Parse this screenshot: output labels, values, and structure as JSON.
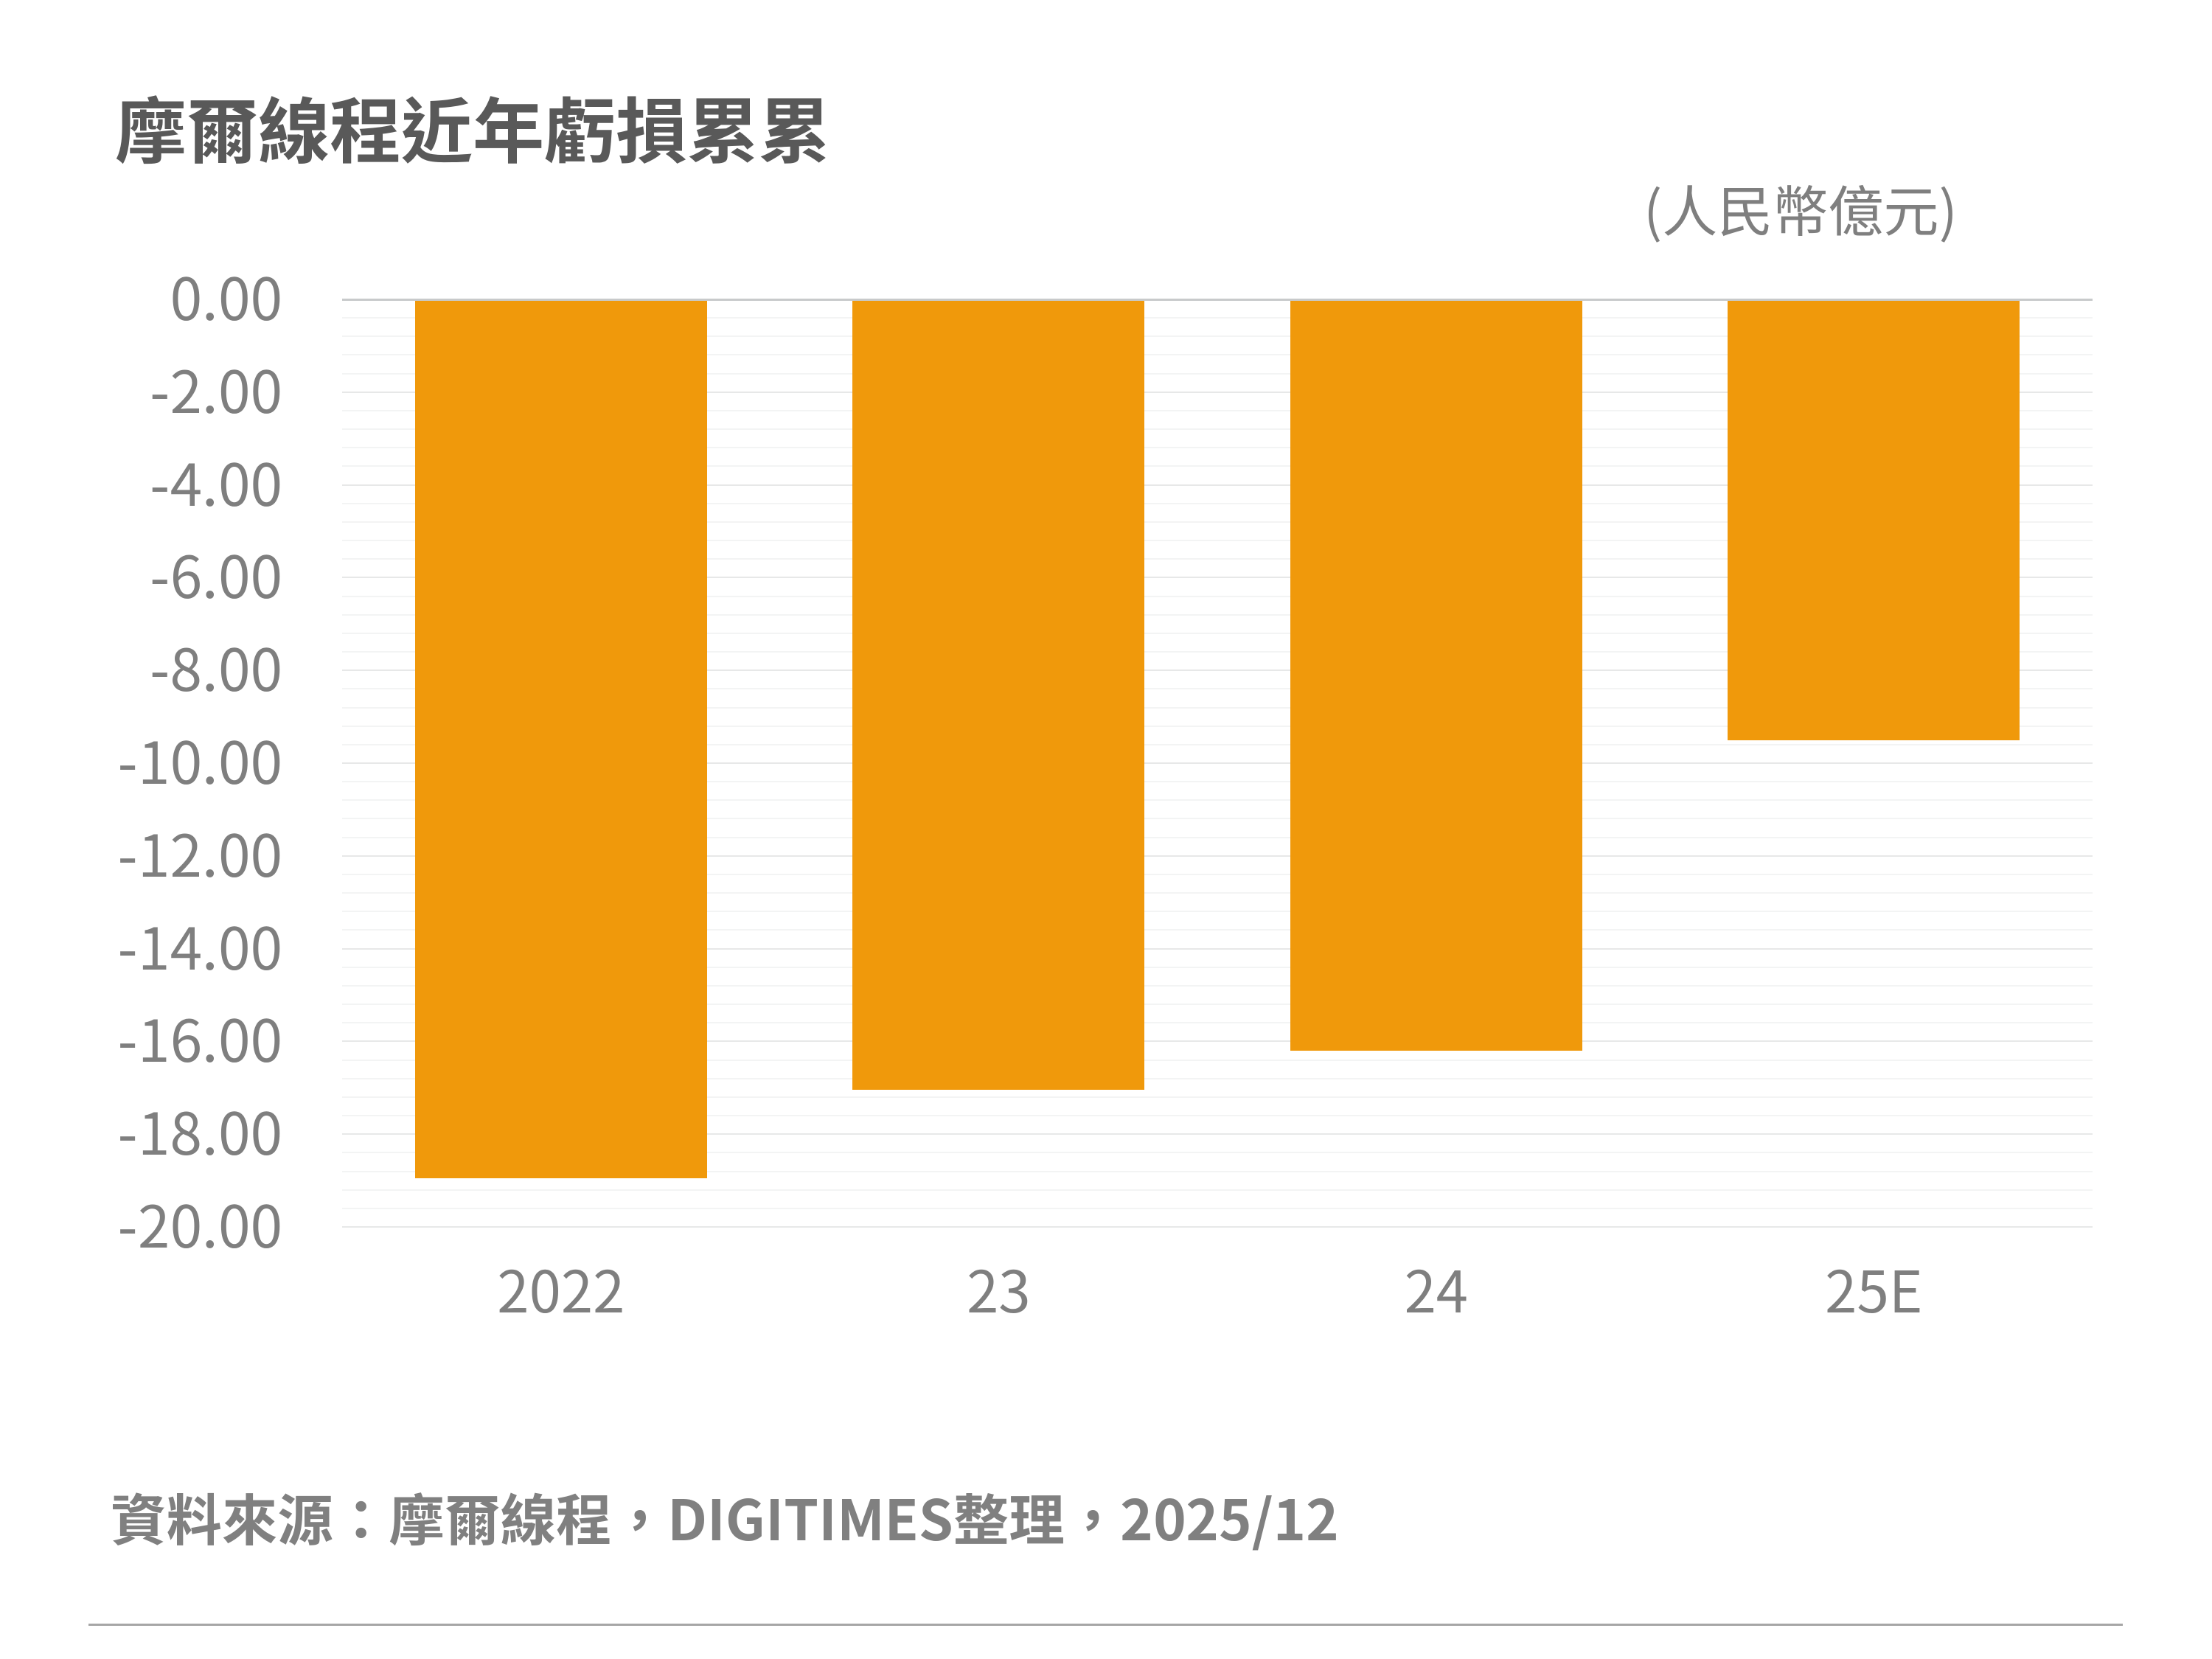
{
  "chart": {
    "title": "摩爾線程近年虧損累累",
    "unit_label": "(人民幣億元)",
    "source_note": "資料來源：摩爾線程，DIGITIMES整理，2025/12"
  },
  "chart_data": {
    "type": "bar",
    "title": "摩爾線程近年虧損累累",
    "unit": "人民幣億元",
    "categories": [
      "2022",
      "23",
      "24",
      "25E"
    ],
    "values": [
      -18.95,
      -17.05,
      -16.2,
      -9.5
    ],
    "xlabel": "",
    "ylabel": "",
    "ylim": [
      -20,
      0
    ],
    "y_major_step": 2,
    "y_minor_step": 0.4,
    "y_tick_labels": [
      "0.00",
      "-2.00",
      "-4.00",
      "-6.00",
      "-8.00",
      "-10.00",
      "-12.00",
      "-14.00",
      "-16.00",
      "-18.00",
      "-20.00"
    ],
    "grid": "major-and-minor-horizontal",
    "legend_position": "none",
    "bar_color": "#F0990B"
  },
  "colors": {
    "bar": "#F0990B",
    "title_text": "#595959",
    "axis_text": "#7F7F7F",
    "source_text": "#808080",
    "zero_axis_line": "#C8CACB",
    "major_gridline": "#E7E8E8",
    "minor_gridline": "#F3F4F4",
    "footer_divider": "#A6A6A6",
    "background": "#FFFFFF"
  }
}
